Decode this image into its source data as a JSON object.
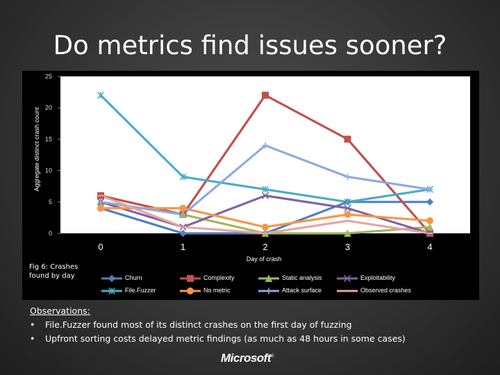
{
  "slide": {
    "title": "Do metrics find issues sooner?",
    "fig_caption": "Fig 6: Crashes found by day",
    "observations": {
      "heading": "Observations:",
      "bullets": [
        "File.Fuzzer found most of its distinct crashes on the first day of fuzzing",
        "Upfront sorting costs delayed metric findings (as much as 48 hours in some cases)"
      ]
    },
    "logo": "Microsoft",
    "logo_mark": "®"
  },
  "chart_data": {
    "type": "line",
    "title": "",
    "xlabel": "Day of crash",
    "ylabel": "Aggregate distinct crash count",
    "x": [
      0,
      1,
      2,
      3,
      4
    ],
    "x_tick_labels": [
      "0",
      "1",
      "2",
      "3",
      "4"
    ],
    "y_ticks": [
      0,
      5,
      10,
      15,
      20,
      25
    ],
    "y_tick_labels": [
      "0",
      "5",
      "10",
      "15",
      "20",
      "25"
    ],
    "ylim": [
      0,
      25
    ],
    "grid": false,
    "legend_position": "bottom",
    "series": [
      {
        "name": "Churn",
        "color": "#4f81bd",
        "marker": "diamond",
        "values": [
          4,
          0,
          0,
          5,
          5
        ]
      },
      {
        "name": "Complexity",
        "color": "#c0504d",
        "marker": "square",
        "values": [
          6,
          3,
          22,
          15,
          0
        ]
      },
      {
        "name": "Static analysis",
        "color": "#9bbb59",
        "marker": "triangle",
        "values": [
          5,
          3,
          0,
          0,
          1
        ]
      },
      {
        "name": "Exploitability",
        "color": "#8064a2",
        "marker": "x",
        "values": [
          5,
          1,
          6,
          4,
          0
        ]
      },
      {
        "name": "File.Fuzzer",
        "color": "#4bacc6",
        "marker": "star",
        "values": [
          22,
          9,
          7,
          5,
          7
        ]
      },
      {
        "name": "No metric",
        "color": "#f79646",
        "marker": "circle",
        "values": [
          4,
          4,
          1,
          3,
          2
        ]
      },
      {
        "name": "Attack surface",
        "color": "#8faadc",
        "marker": "plus",
        "values": [
          5,
          3,
          14,
          9,
          7
        ]
      },
      {
        "name": "Observed crashes",
        "color": "#e6a5a3",
        "marker": "dash",
        "values": [
          6,
          1,
          0,
          2,
          0
        ]
      }
    ]
  }
}
